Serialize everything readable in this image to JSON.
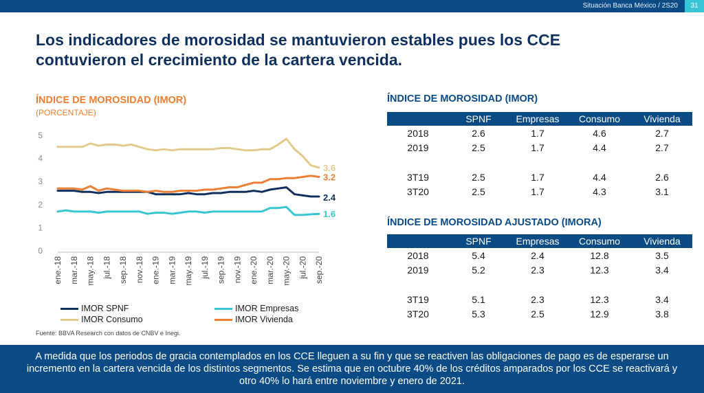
{
  "header": {
    "report": "Situación Banca México / 2S20",
    "page": "31"
  },
  "title": "Los indicadores de morosidad se mantuvieron estables pues los CCE contuvieron el crecimiento de la cartera vencida.",
  "chart": {
    "title": "ÍNDICE DE MOROSIDAD (IMOR)",
    "subtitle": "(PORCENTAJE)"
  },
  "source": "Fuente: BBVA Research con datos de CNBV e Inegi.",
  "chart_data": {
    "type": "line",
    "title": "ÍNDICE DE MOROSIDAD (IMOR)",
    "ylabel": "(PORCENTAJE)",
    "xlabel": "",
    "ylim": [
      0,
      5
    ],
    "yticks": [
      "0",
      "1",
      "2",
      "3",
      "4",
      "5"
    ],
    "x": [
      "ene.-18",
      "feb.-18",
      "mar.-18",
      "abr.-18",
      "may.-18",
      "jun.-18",
      "jul.-18",
      "ago.-18",
      "sep.-18",
      "oct.-18",
      "nov.-18",
      "dic.-18",
      "ene.-19",
      "feb.-19",
      "mar.-19",
      "abr.-19",
      "may.-19",
      "jun.-19",
      "jul.-19",
      "ago.-19",
      "sep.-19",
      "oct.-19",
      "nov.-19",
      "dic.-19",
      "ene.-20",
      "feb.-20",
      "mar.-20",
      "abr.-20",
      "may.-20",
      "jun.-20",
      "jul.-20",
      "ago.-20",
      "sep.-20"
    ],
    "tick_labels": [
      "ene.-18",
      "mar.-18",
      "may.-18",
      "jul.-18",
      "sep.-18",
      "nov.-18",
      "ene.-19",
      "mar.-19",
      "may.-19",
      "jul.-19",
      "sep.-19",
      "nov.-19",
      "ene.-20",
      "mar.-20",
      "may.-20",
      "jul.-20",
      "sep.-20"
    ],
    "series": [
      {
        "name": "IMOR SPNF",
        "color": "#0f2f5c",
        "end_label": "2.4",
        "values": [
          2.6,
          2.6,
          2.6,
          2.55,
          2.55,
          2.5,
          2.55,
          2.55,
          2.55,
          2.55,
          2.55,
          2.55,
          2.45,
          2.45,
          2.45,
          2.45,
          2.5,
          2.45,
          2.45,
          2.5,
          2.5,
          2.55,
          2.55,
          2.55,
          2.6,
          2.55,
          2.65,
          2.7,
          2.75,
          2.45,
          2.4,
          2.35,
          2.35
        ]
      },
      {
        "name": "IMOR Empresas",
        "color": "#38c6d4",
        "end_label": "1.6",
        "values": [
          1.7,
          1.75,
          1.7,
          1.7,
          1.7,
          1.65,
          1.7,
          1.7,
          1.7,
          1.7,
          1.7,
          1.6,
          1.65,
          1.65,
          1.6,
          1.65,
          1.7,
          1.7,
          1.65,
          1.7,
          1.7,
          1.7,
          1.7,
          1.7,
          1.7,
          1.7,
          1.85,
          1.85,
          1.9,
          1.55,
          1.55,
          1.58,
          1.6
        ]
      },
      {
        "name": "IMOR Consumo",
        "color": "#e3c98c",
        "end_label": "3.6",
        "values": [
          4.5,
          4.5,
          4.5,
          4.5,
          4.65,
          4.55,
          4.6,
          4.6,
          4.55,
          4.6,
          4.5,
          4.4,
          4.35,
          4.4,
          4.35,
          4.4,
          4.4,
          4.4,
          4.4,
          4.4,
          4.45,
          4.45,
          4.4,
          4.35,
          4.35,
          4.4,
          4.4,
          4.6,
          4.85,
          4.4,
          4.1,
          3.7,
          3.6
        ]
      },
      {
        "name": "IMOR Vivienda",
        "color": "#ec7f34",
        "end_label": "3.2",
        "values": [
          2.7,
          2.7,
          2.7,
          2.65,
          2.8,
          2.6,
          2.7,
          2.65,
          2.6,
          2.6,
          2.6,
          2.55,
          2.6,
          2.55,
          2.55,
          2.6,
          2.6,
          2.6,
          2.65,
          2.65,
          2.7,
          2.75,
          2.75,
          2.85,
          2.95,
          2.95,
          3.1,
          3.1,
          3.15,
          3.15,
          3.2,
          3.25,
          3.2
        ]
      }
    ]
  },
  "imor_table": {
    "title": "ÍNDICE DE MOROSIDAD (IMOR)",
    "headers": [
      "",
      "SPNF",
      "Empresas",
      "Consumo",
      "Vivienda"
    ],
    "rows": [
      [
        "2018",
        "2.6",
        "1.7",
        "4.6",
        "2.7"
      ],
      [
        "2019",
        "2.5",
        "1.7",
        "4.4",
        "2.7"
      ],
      [
        "3T19",
        "2.5",
        "1.7",
        "4.4",
        "2.6"
      ],
      [
        "3T20",
        "2.5",
        "1.7",
        "4.3",
        "3.1"
      ]
    ]
  },
  "imora_table": {
    "title": "ÍNDICE DE MOROSIDAD AJUSTADO (IMORA)",
    "headers": [
      "",
      "SPNF",
      "Empresas",
      "Consumo",
      "Vivienda"
    ],
    "rows": [
      [
        "2018",
        "5.4",
        "2.4",
        "12.8",
        "3.5"
      ],
      [
        "2019",
        "5.2",
        "2.3",
        "12.3",
        "3.4"
      ],
      [
        "3T19",
        "5.1",
        "2.3",
        "12.3",
        "3.4"
      ],
      [
        "3T20",
        "5.3",
        "2.5",
        "12.9",
        "3.8"
      ]
    ]
  },
  "footer": "A medida que los periodos de gracia contemplados en los CCE lleguen a su fin y que se reactiven las obligaciones de pago es de esperarse un incremento en la cartera vencida de los distintos segmentos. Se estima que en octubre 40% de los créditos amparados por los CCE se reactivará y otro 40% lo hará entre noviembre y enero de 2021."
}
